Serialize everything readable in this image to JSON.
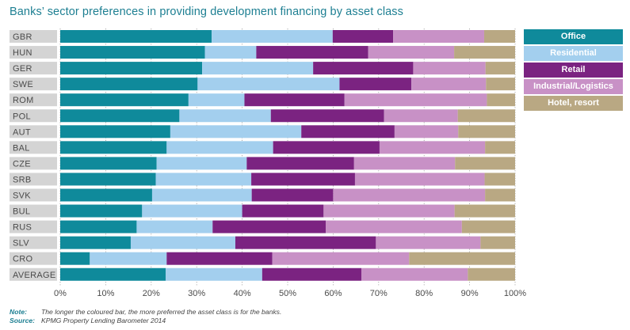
{
  "title": "Banks’ sector preferences in providing development financing by asset class",
  "legend": [
    {
      "label": "Office",
      "color": "#0f8a9b",
      "text_color": "#ffffff"
    },
    {
      "label": "Residential",
      "color": "#a3cfee",
      "text_color": "#ffffff"
    },
    {
      "label": "Retail",
      "color": "#7b2381",
      "text_color": "#ffffff"
    },
    {
      "label": "Industrial/Logistics",
      "color": "#c891c6",
      "text_color": "#ffffff"
    },
    {
      "label": "Hotel, resort",
      "color": "#b9a883",
      "text_color": "#ffffff"
    }
  ],
  "notes": {
    "note_label": "Note:",
    "note_text": "The longer the coloured bar, the more preferred the asset class is for the banks.",
    "source_label": "Source:",
    "source_text": "KPMG Property Lending Barometer 2014"
  },
  "chart_data": {
    "type": "bar",
    "orientation": "horizontal",
    "stacked": true,
    "title": "Banks’ sector preferences in providing development financing by asset class",
    "xlabel": "",
    "ylabel": "",
    "xlim": [
      0,
      100
    ],
    "x_ticks": [
      "0%",
      "10%",
      "20%",
      "30%",
      "40%",
      "50%",
      "60%",
      "70%",
      "80%",
      "90%",
      "100%"
    ],
    "grid": true,
    "legend_position": "right",
    "categories": [
      "GBR",
      "HUN",
      "GER",
      "SWE",
      "ROM",
      "POL",
      "AUT",
      "BAL",
      "CZE",
      "SRB",
      "SVK",
      "BUL",
      "RUS",
      "SLV",
      "CRO",
      "AVERAGE"
    ],
    "series": [
      {
        "name": "Office",
        "color": "#0f8a9b",
        "values": [
          33.3,
          31.8,
          31.2,
          30.2,
          28.2,
          26.2,
          24.2,
          23.4,
          21.2,
          21.0,
          20.2,
          18.0,
          16.8,
          15.5,
          6.5,
          23.2
        ]
      },
      {
        "name": "Residential",
        "color": "#a3cfee",
        "values": [
          26.6,
          11.3,
          24.4,
          31.2,
          12.3,
          20.1,
          28.8,
          23.4,
          19.8,
          21.0,
          21.9,
          22.0,
          16.7,
          23.0,
          16.9,
          21.2
        ]
      },
      {
        "name": "Retail",
        "color": "#7b2381",
        "values": [
          13.3,
          24.6,
          22.0,
          15.8,
          22.0,
          24.9,
          20.5,
          23.4,
          23.6,
          22.8,
          17.9,
          17.9,
          24.9,
          30.9,
          23.2,
          21.8
        ]
      },
      {
        "name": "Industrial/Logistics",
        "color": "#c891c6",
        "values": [
          20.0,
          18.9,
          15.9,
          16.4,
          31.3,
          16.2,
          14.0,
          23.2,
          22.2,
          28.5,
          33.4,
          28.8,
          29.9,
          23.0,
          30.1,
          23.4
        ]
      },
      {
        "name": "Hotel, resort",
        "color": "#b9a883",
        "values": [
          6.8,
          13.4,
          6.5,
          6.4,
          6.2,
          12.6,
          12.5,
          6.6,
          13.2,
          6.7,
          6.6,
          13.3,
          11.7,
          7.6,
          23.3,
          10.4
        ]
      }
    ]
  }
}
